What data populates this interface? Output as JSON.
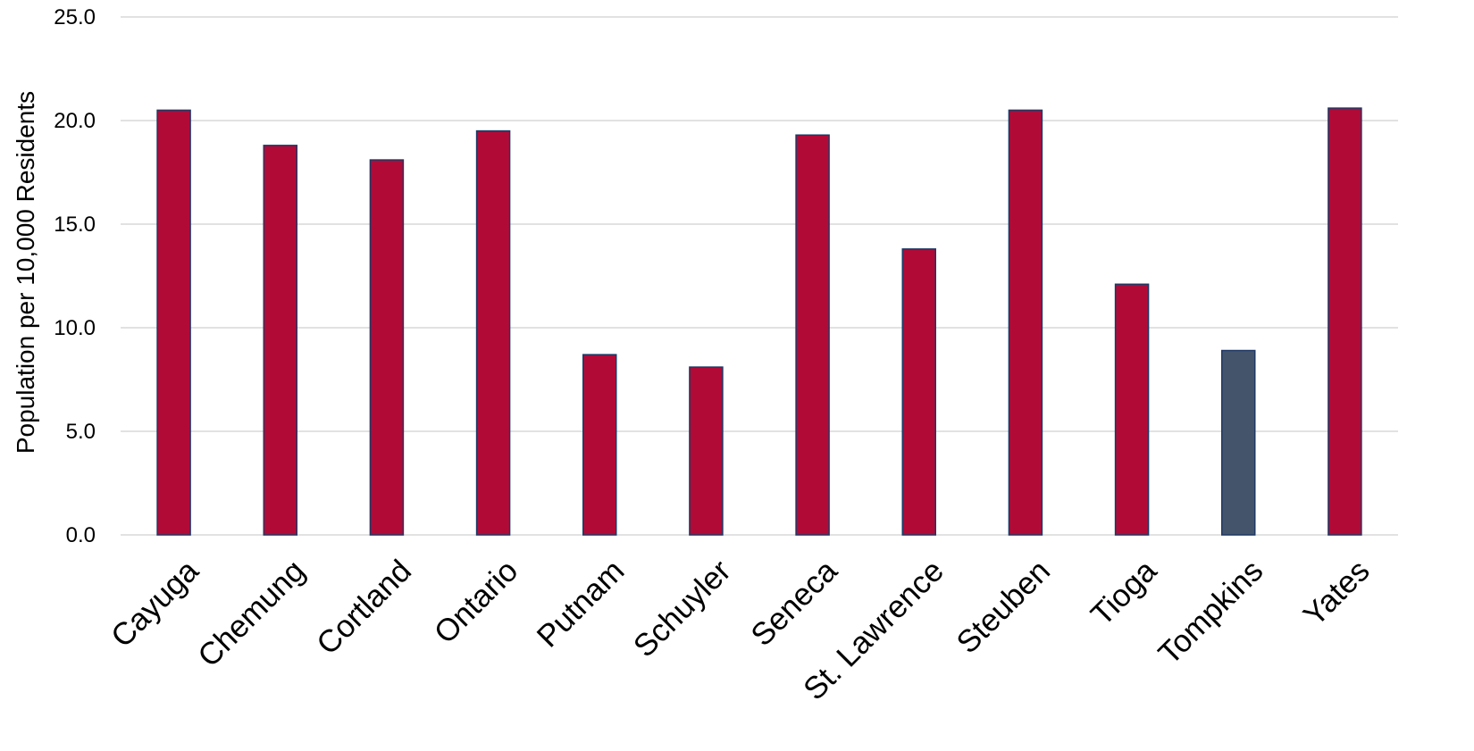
{
  "chart_data": {
    "type": "bar",
    "title": "",
    "xlabel": "",
    "ylabel": "Population per 10,000 Residents",
    "ylim": [
      0,
      25
    ],
    "y_ticks": [
      0,
      5,
      10,
      15,
      20,
      25
    ],
    "y_tick_labels": [
      "0.0",
      "5.0",
      "10.0",
      "15.0",
      "20.0",
      "25.0"
    ],
    "grid": true,
    "legend": "none",
    "categories": [
      "Cayuga",
      "Chemung",
      "Cortland",
      "Ontario",
      "Putnam",
      "Schuyler",
      "Seneca",
      "St. Lawrence",
      "Steuben",
      "Tioga",
      "Tompkins",
      "Yates"
    ],
    "values": [
      20.5,
      18.8,
      18.1,
      19.5,
      8.7,
      8.1,
      19.3,
      13.8,
      20.5,
      12.1,
      8.9,
      20.6
    ],
    "colors": {
      "default_bar": "#b20a37",
      "highlight_bar": "#44546a",
      "bar_outline": "#1f3864",
      "grid": "#d9d9d9"
    },
    "highlight_category": "Tompkins"
  }
}
